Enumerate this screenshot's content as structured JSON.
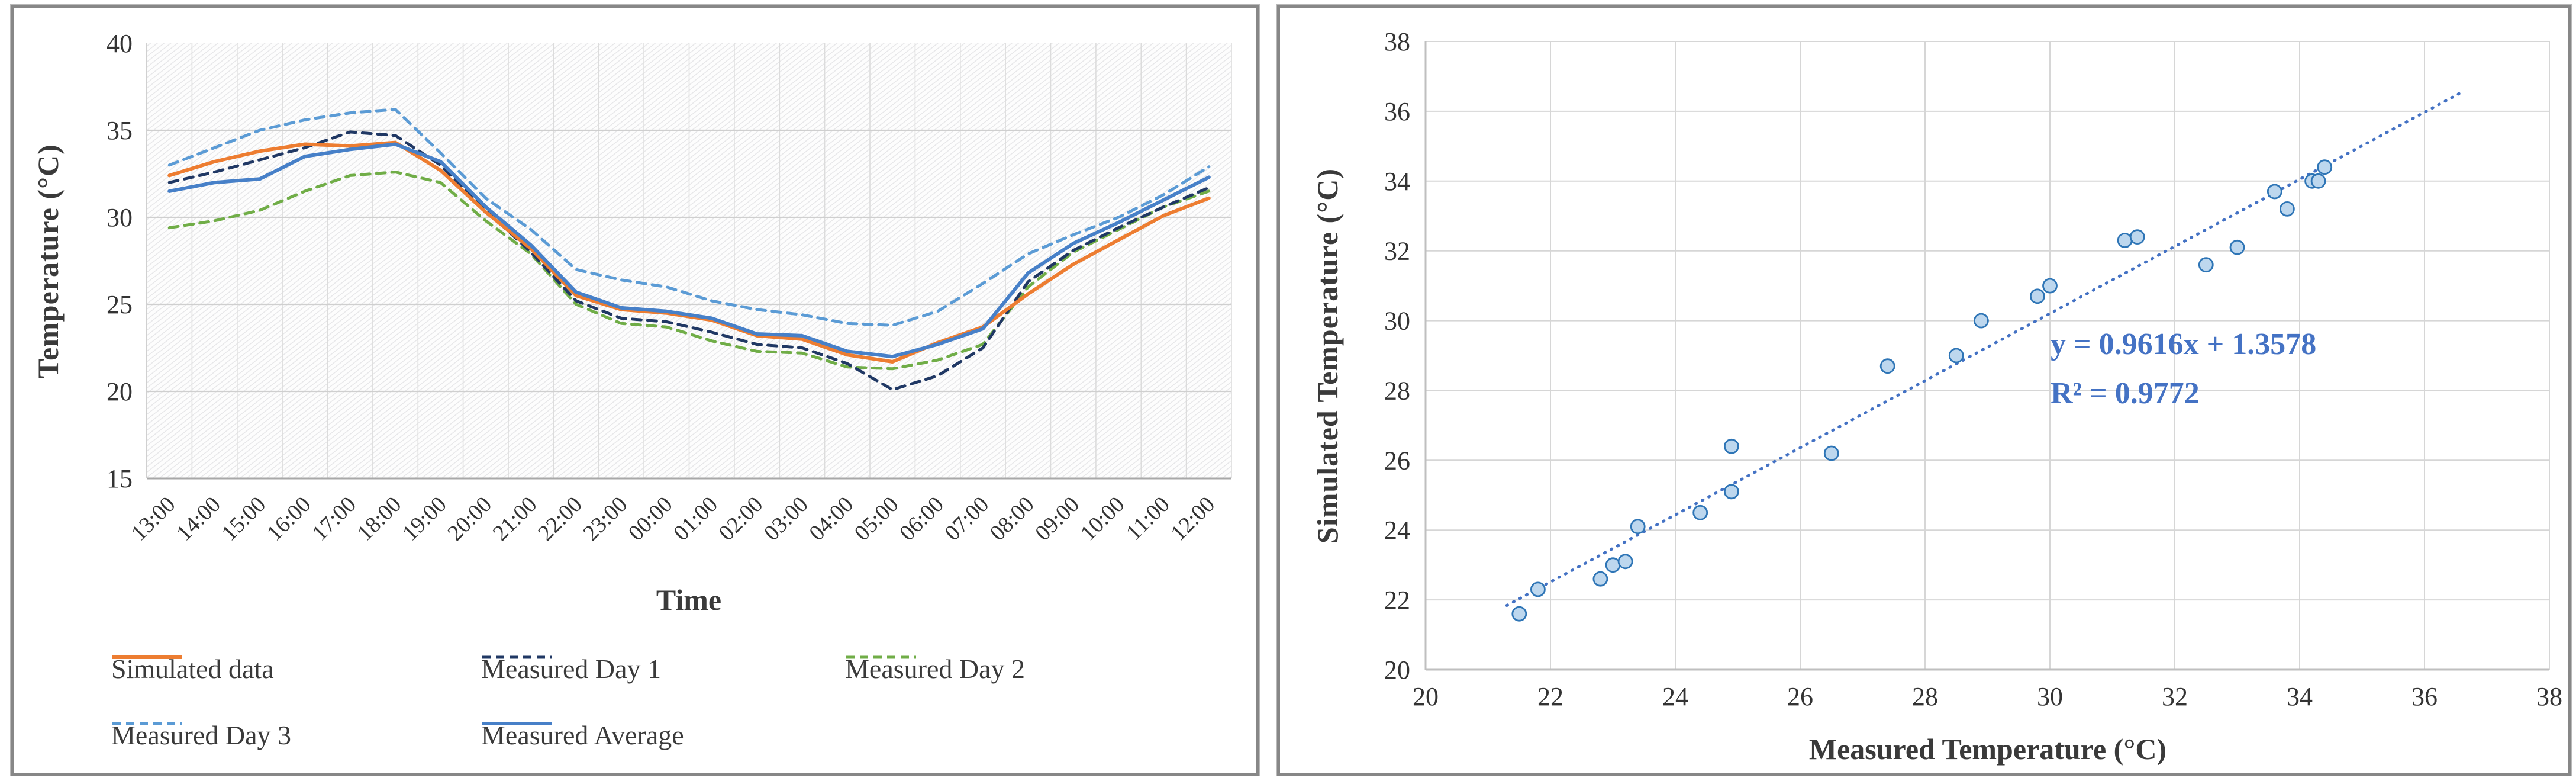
{
  "page": {
    "description": "Two side-by-side temperature validation charts",
    "border_color": "#878787",
    "background": "#ffffff"
  },
  "chart_data": [
    {
      "type": "line",
      "title": "",
      "xlabel": "Time",
      "ylabel": "Temperature (°C)",
      "ylim": [
        15,
        40
      ],
      "yticks": [
        15,
        20,
        25,
        30,
        35,
        40
      ],
      "grid": "both",
      "plot_background": "diagonal-hatch",
      "legend_position": "bottom",
      "categories": [
        "13:00",
        "14:00",
        "15:00",
        "16:00",
        "17:00",
        "18:00",
        "19:00",
        "20:00",
        "21:00",
        "22:00",
        "23:00",
        "00:00",
        "01:00",
        "02:00",
        "03:00",
        "04:00",
        "05:00",
        "06:00",
        "07:00",
        "08:00",
        "09:00",
        "10:00",
        "11:00",
        "12:00"
      ],
      "series": [
        {
          "name": "Simulated data",
          "color": "#ED7D31",
          "style": "solid",
          "values": [
            32.4,
            33.2,
            33.8,
            34.2,
            34.1,
            34.3,
            32.7,
            30.3,
            28.2,
            25.5,
            24.7,
            24.5,
            24.1,
            23.2,
            23.0,
            22.1,
            21.7,
            22.8,
            23.7,
            25.6,
            27.3,
            28.7,
            30.1,
            31.1
          ]
        },
        {
          "name": "Measured Day 1",
          "color": "#203864",
          "style": "dashed",
          "values": [
            32.0,
            32.6,
            33.3,
            34.0,
            34.9,
            34.7,
            33.0,
            30.4,
            28.0,
            25.2,
            24.2,
            24.0,
            23.4,
            22.7,
            22.5,
            21.6,
            20.1,
            20.9,
            22.5,
            26.3,
            28.1,
            29.4,
            30.6,
            31.7
          ]
        },
        {
          "name": "Measured Day 2",
          "color": "#70AD47",
          "style": "dashed",
          "values": [
            29.4,
            29.8,
            30.4,
            31.5,
            32.4,
            32.6,
            32.0,
            29.8,
            27.9,
            25.0,
            23.9,
            23.7,
            22.9,
            22.3,
            22.2,
            21.4,
            21.3,
            21.8,
            22.7,
            26.0,
            28.0,
            29.3,
            30.6,
            31.5
          ]
        },
        {
          "name": "Measured Day 3",
          "color": "#5B9BD5",
          "style": "dashed",
          "values": [
            33.0,
            34.0,
            35.0,
            35.6,
            36.0,
            36.2,
            33.7,
            31.1,
            29.3,
            27.0,
            26.4,
            26.0,
            25.2,
            24.7,
            24.4,
            23.9,
            23.8,
            24.6,
            26.2,
            27.9,
            29.0,
            30.0,
            31.3,
            32.9
          ]
        },
        {
          "name": "Measured Average",
          "color": "#4780C8",
          "style": "solid",
          "values": [
            31.5,
            32.0,
            32.2,
            33.5,
            33.9,
            34.2,
            33.2,
            30.6,
            28.4,
            25.7,
            24.8,
            24.6,
            24.2,
            23.3,
            23.2,
            22.3,
            22.0,
            22.7,
            23.6,
            26.8,
            28.5,
            29.7,
            31.0,
            32.3
          ]
        }
      ]
    },
    {
      "type": "scatter",
      "title": "",
      "xlabel": "Measured Temperature (°C)",
      "ylabel": "Simulated Temperature (°C)",
      "xlim": [
        20,
        38
      ],
      "ylim": [
        20,
        38
      ],
      "xticks": [
        20,
        22,
        24,
        26,
        28,
        30,
        32,
        34,
        36,
        38
      ],
      "yticks": [
        20,
        22,
        24,
        26,
        28,
        30,
        32,
        34,
        36,
        38
      ],
      "grid": "both",
      "marker": {
        "shape": "circle",
        "fill": "#BDD7EE",
        "stroke": "#2E75B6"
      },
      "points": [
        [
          21.5,
          21.6
        ],
        [
          21.8,
          22.3
        ],
        [
          22.8,
          22.6
        ],
        [
          23.0,
          23.0
        ],
        [
          23.2,
          23.1
        ],
        [
          23.4,
          24.1
        ],
        [
          24.4,
          24.5
        ],
        [
          24.9,
          25.1
        ],
        [
          24.9,
          26.4
        ],
        [
          26.5,
          26.2
        ],
        [
          27.4,
          28.7
        ],
        [
          28.5,
          29.0
        ],
        [
          28.9,
          30.0
        ],
        [
          29.8,
          30.7
        ],
        [
          30.0,
          31.0
        ],
        [
          31.2,
          32.3
        ],
        [
          31.4,
          32.4
        ],
        [
          32.5,
          31.6
        ],
        [
          33.0,
          32.1
        ],
        [
          33.6,
          33.7
        ],
        [
          33.8,
          33.2
        ],
        [
          34.2,
          34.0
        ],
        [
          34.3,
          34.0
        ],
        [
          34.4,
          34.4
        ]
      ],
      "trendline": {
        "style": "dotted",
        "color": "#4472C4",
        "x1": 21.3,
        "y1": 21.84,
        "x2": 36.6,
        "y2": 36.55,
        "equation": "y = 0.9616x + 1.3578",
        "r_squared": "R² = 0.9772"
      }
    }
  ]
}
